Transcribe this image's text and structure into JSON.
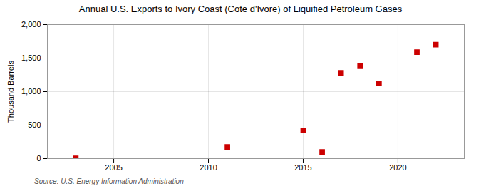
{
  "chart_data": {
    "type": "scatter",
    "title": "Annual U.S. Exports to Ivory Coast (Cote d'Ivore) of Liquified Petroleum Gases",
    "ylabel": "Thousand Barrels",
    "source": "Source: U.S. Energy Information Administration",
    "x": [
      2003,
      2011,
      2015,
      2016,
      2017,
      2018,
      2019,
      2021,
      2022
    ],
    "values": [
      5,
      175,
      420,
      100,
      1280,
      1380,
      1120,
      1590,
      1700
    ],
    "color": "#cc0000",
    "marker": "square",
    "xlim": [
      2001.5,
      2023.5
    ],
    "xticks": [
      2005,
      2010,
      2015,
      2020
    ],
    "ylim": [
      0,
      2000
    ],
    "yticks": [
      0,
      500,
      {
        "value": 1000,
        "label": "1,000"
      },
      {
        "value": 1500,
        "label": "1,500"
      },
      {
        "value": 2000,
        "label": "2,000"
      }
    ],
    "grid": true
  }
}
